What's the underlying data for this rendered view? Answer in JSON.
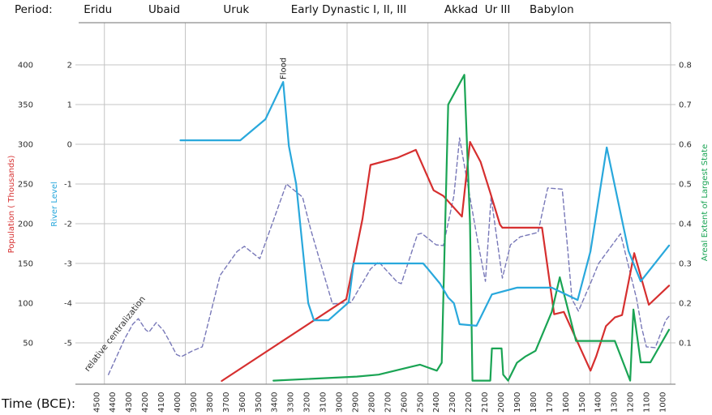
{
  "header": {
    "caption": "Period:",
    "periods": [
      {
        "name": "Eridu",
        "center_year": 4490
      },
      {
        "name": "Ubaid",
        "center_year": 4080
      },
      {
        "name": "Uruk",
        "center_year": 3635
      },
      {
        "name": "Early Dynastic I, II, III",
        "center_year": 2940
      },
      {
        "name": "Akkad",
        "center_year": 2245
      },
      {
        "name": "Ur III",
        "center_year": 2020
      },
      {
        "name": "Babylon",
        "center_year": 1685
      }
    ]
  },
  "footer": {
    "xlabel": "Time (BCE):"
  },
  "annotations": {
    "flood": "Flood",
    "centralization": "relative centralization"
  },
  "colors": {
    "population": "#d62f2f",
    "river": "#29a8dc",
    "extent": "#1aa454",
    "centralization": "#7878b8",
    "grid": "#c4c4c4",
    "border": "#8c8c8c",
    "tick_text": "#2b2b2b",
    "period_text": "#111111",
    "background": "#ffffff"
  },
  "chart_data": {
    "type": "line",
    "title": "",
    "x_axis": {
      "label": "Time (BCE):",
      "direction": "decreasing",
      "tick_years": [
        4500,
        4400,
        4300,
        4200,
        4100,
        4000,
        3900,
        3800,
        3700,
        3600,
        3500,
        3400,
        3300,
        3200,
        3100,
        3000,
        2900,
        2800,
        2700,
        2600,
        2500,
        2400,
        2300,
        2200,
        2100,
        2000,
        1900,
        1800,
        1700,
        1600,
        1500,
        1400,
        1300,
        1200,
        1100,
        1000
      ],
      "gridline_years": [
        4450,
        3950,
        3450,
        2950,
        2450,
        1950,
        1450,
        950
      ]
    },
    "y_axes": [
      {
        "id": "population",
        "label": "Population ( Thousands)",
        "side": "left",
        "ticks": [
          400,
          350,
          300,
          250,
          200,
          150,
          100,
          50
        ]
      },
      {
        "id": "river",
        "label": "River Level",
        "side": "left",
        "ticks": [
          2,
          1,
          0,
          -1,
          -2,
          -3,
          -4,
          -5
        ]
      },
      {
        "id": "extent",
        "label": "Areal Extent of  Largest State",
        "side": "right",
        "ticks": [
          0.8,
          0.7,
          0.6,
          0.5,
          0.4,
          0.3,
          0.2,
          0.1
        ]
      }
    ],
    "grid": true,
    "legend": "none",
    "series": [
      {
        "name": "Population (Thousands)",
        "axis": "population",
        "style": "solid",
        "color": "#d62f2f",
        "points": [
          [
            3725,
            2
          ],
          [
            2955,
            105
          ],
          [
            2855,
            206
          ],
          [
            2805,
            274
          ],
          [
            2640,
            283
          ],
          [
            2525,
            293
          ],
          [
            2415,
            242
          ],
          [
            2355,
            235
          ],
          [
            2240,
            209
          ],
          [
            2190,
            303
          ],
          [
            2125,
            278
          ],
          [
            2065,
            239
          ],
          [
            2005,
            199
          ],
          [
            1990,
            195
          ],
          [
            1745,
            195
          ],
          [
            1670,
            86
          ],
          [
            1610,
            89
          ],
          [
            1445,
            15
          ],
          [
            1410,
            33
          ],
          [
            1350,
            71
          ],
          [
            1295,
            82
          ],
          [
            1250,
            85
          ],
          [
            1175,
            163
          ],
          [
            1085,
            98
          ],
          [
            960,
            122
          ]
        ]
      },
      {
        "name": "River Level",
        "axis": "river",
        "style": "solid",
        "color": "#29a8dc",
        "points": [
          [
            3980,
            0.1
          ],
          [
            3610,
            0.1
          ],
          [
            3455,
            0.63
          ],
          [
            3345,
            1.57
          ],
          [
            3310,
            -0.04
          ],
          [
            3265,
            -1.0
          ],
          [
            3190,
            -4.0
          ],
          [
            3155,
            -4.43
          ],
          [
            3065,
            -4.43
          ],
          [
            2940,
            -3.98
          ],
          [
            2910,
            -3.0
          ],
          [
            2480,
            -3.0
          ],
          [
            2450,
            -3.14
          ],
          [
            2375,
            -3.51
          ],
          [
            2325,
            -3.86
          ],
          [
            2290,
            -4.0
          ],
          [
            2255,
            -4.53
          ],
          [
            2150,
            -4.57
          ],
          [
            2055,
            -3.78
          ],
          [
            1900,
            -3.61
          ],
          [
            1685,
            -3.61
          ],
          [
            1525,
            -3.92
          ],
          [
            1445,
            -2.69
          ],
          [
            1345,
            -0.08
          ],
          [
            1210,
            -2.69
          ],
          [
            1135,
            -3.45
          ],
          [
            960,
            -2.55
          ]
        ]
      },
      {
        "name": "Areal Extent of Largest State",
        "axis": "extent",
        "style": "solid",
        "color": "#1aa454",
        "points": [
          [
            3405,
            0.005
          ],
          [
            2890,
            0.015
          ],
          [
            2755,
            0.02
          ],
          [
            2500,
            0.045
          ],
          [
            2395,
            0.03
          ],
          [
            2365,
            0.05
          ],
          [
            2325,
            0.7
          ],
          [
            2225,
            0.775
          ],
          [
            2190,
            0.4
          ],
          [
            2175,
            0.005
          ],
          [
            2065,
            0.005
          ],
          [
            2055,
            0.086
          ],
          [
            1995,
            0.086
          ],
          [
            1985,
            0.02
          ],
          [
            1955,
            0.005
          ],
          [
            1900,
            0.05
          ],
          [
            1850,
            0.065
          ],
          [
            1785,
            0.08
          ],
          [
            1685,
            0.178
          ],
          [
            1635,
            0.265
          ],
          [
            1535,
            0.105
          ],
          [
            1295,
            0.105
          ],
          [
            1200,
            0.005
          ],
          [
            1180,
            0.184
          ],
          [
            1135,
            0.051
          ],
          [
            1075,
            0.051
          ],
          [
            960,
            0.133
          ]
        ]
      },
      {
        "name": "relative centralization",
        "axis": "extent",
        "style": "dashed",
        "color": "#7878b8",
        "points": [
          [
            4425,
            0.02
          ],
          [
            4325,
            0.11
          ],
          [
            4275,
            0.147
          ],
          [
            4240,
            0.161
          ],
          [
            4195,
            0.133
          ],
          [
            4175,
            0.127
          ],
          [
            4130,
            0.151
          ],
          [
            4085,
            0.131
          ],
          [
            4050,
            0.106
          ],
          [
            4005,
            0.071
          ],
          [
            3975,
            0.065
          ],
          [
            3905,
            0.08
          ],
          [
            3845,
            0.09
          ],
          [
            3735,
            0.27
          ],
          [
            3630,
            0.33
          ],
          [
            3585,
            0.343
          ],
          [
            3490,
            0.312
          ],
          [
            3325,
            0.5
          ],
          [
            3225,
            0.467
          ],
          [
            3175,
            0.386
          ],
          [
            3040,
            0.198
          ],
          [
            2925,
            0.202
          ],
          [
            2805,
            0.286
          ],
          [
            2755,
            0.304
          ],
          [
            2640,
            0.253
          ],
          [
            2615,
            0.249
          ],
          [
            2515,
            0.373
          ],
          [
            2490,
            0.376
          ],
          [
            2400,
            0.347
          ],
          [
            2355,
            0.345
          ],
          [
            2290,
            0.47
          ],
          [
            2255,
            0.616
          ],
          [
            2140,
            0.35
          ],
          [
            2095,
            0.255
          ],
          [
            2060,
            0.467
          ],
          [
            1990,
            0.263
          ],
          [
            1940,
            0.347
          ],
          [
            1880,
            0.367
          ],
          [
            1770,
            0.378
          ],
          [
            1710,
            0.49
          ],
          [
            1620,
            0.487
          ],
          [
            1585,
            0.33
          ],
          [
            1560,
            0.21
          ],
          [
            1520,
            0.18
          ],
          [
            1445,
            0.25
          ],
          [
            1395,
            0.3
          ],
          [
            1260,
            0.375
          ],
          [
            1160,
            0.21
          ],
          [
            1130,
            0.14
          ],
          [
            1100,
            0.09
          ],
          [
            1045,
            0.088
          ],
          [
            980,
            0.157
          ],
          [
            960,
            0.167
          ]
        ]
      }
    ]
  }
}
